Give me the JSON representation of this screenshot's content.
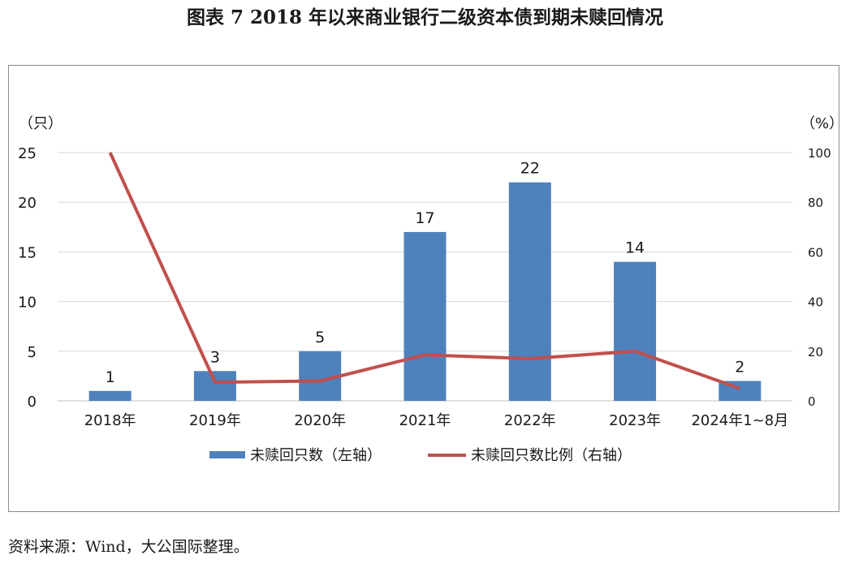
{
  "title": "图表 7  2018 年以来商业银行二级资本债到期未赎回情况",
  "source": "资料来源：Wind，大公国际整理。",
  "colors": {
    "bar": "#4f81bd",
    "line": "#c0504d",
    "grid": "#d9d9d9",
    "axis": "#bfbfbf"
  },
  "chart_data": {
    "type": "bar",
    "categories": [
      "2018年",
      "2019年",
      "2020年",
      "2021年",
      "2022年",
      "2023年",
      "2024年1~8月"
    ],
    "y_left_unit": "（只）",
    "y_right_unit": "（%）",
    "y_left_lim": [
      0,
      25
    ],
    "y_left_ticks": [
      0,
      5,
      10,
      15,
      20,
      25
    ],
    "y_right_lim": [
      0,
      100
    ],
    "y_right_ticks": [
      0,
      20,
      40,
      60,
      80,
      100
    ],
    "grid": true,
    "legend_position": "bottom",
    "series": [
      {
        "name": "未赎回只数（左轴）",
        "type": "bar",
        "axis": "left",
        "values": [
          1,
          3,
          5,
          17,
          22,
          14,
          2
        ]
      },
      {
        "name": "未赎回只数比例（右轴）",
        "type": "line",
        "axis": "right",
        "values": [
          100,
          7.5,
          8,
          18.5,
          17,
          20,
          5
        ]
      }
    ]
  }
}
